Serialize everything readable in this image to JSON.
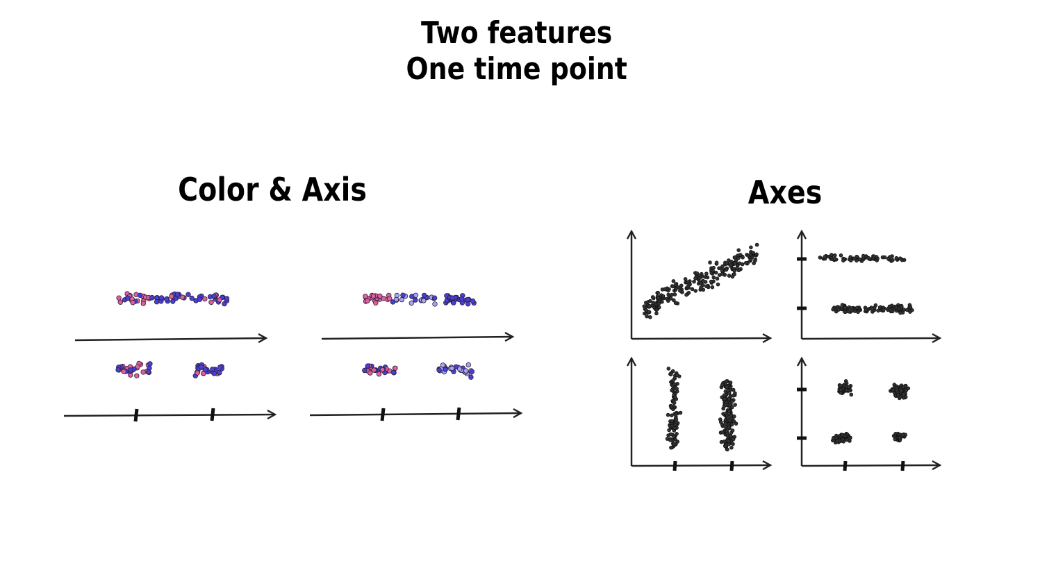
{
  "title": {
    "line1": "Two features",
    "line2": "One time point"
  },
  "sections": {
    "left": "Color & Axis",
    "right": "Axes"
  },
  "colors": {
    "pink": "#e0609a",
    "blue": "#4a3fd6",
    "light_blue": "#a9a6f0",
    "black": "#222222"
  }
}
